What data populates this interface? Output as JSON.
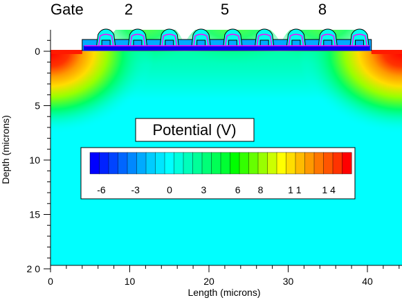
{
  "chart_data": {
    "type": "heatmap",
    "title": "Potential (V)",
    "gate_label": "Gate",
    "gate_numbers": [
      "2",
      "5",
      "8"
    ],
    "xlabel": "Length (microns)",
    "ylabel": "Depth (microns)",
    "xlim": [
      0,
      44
    ],
    "ylim": [
      -2,
      20
    ],
    "x_ticks": [
      {
        "value": 0,
        "label": "0"
      },
      {
        "value": 10,
        "label": "10"
      },
      {
        "value": 20,
        "label": "20"
      },
      {
        "value": 30,
        "label": "30"
      },
      {
        "value": 40,
        "label": "40"
      }
    ],
    "y_ticks": [
      {
        "value": 0,
        "label": "0"
      },
      {
        "value": 5,
        "label": "5"
      },
      {
        "value": 10,
        "label": "10"
      },
      {
        "value": 15,
        "label": "15"
      },
      {
        "value": 20,
        "label": "2 0"
      }
    ],
    "colorbar": {
      "range": [
        -7,
        16
      ],
      "tick_labels": [
        "-6",
        "-3",
        "0",
        "3",
        "6",
        "8",
        "1 1",
        "1 4"
      ],
      "colors": [
        "#0000ff",
        "#0022ff",
        "#0044ff",
        "#0066ff",
        "#0088ff",
        "#00aaff",
        "#00ccff",
        "#00e6ff",
        "#00ffff",
        "#00ffdd",
        "#00ffbb",
        "#00ff99",
        "#00ff77",
        "#00ff55",
        "#00ff33",
        "#00ff00",
        "#33ff00",
        "#66ff00",
        "#99ff00",
        "#ccff00",
        "#ffff00",
        "#ffdd00",
        "#ffbb00",
        "#ff9900",
        "#ff7700",
        "#ff5500",
        "#ff3300",
        "#ff0000"
      ]
    },
    "colors": {
      "substrate": "#00ffff",
      "oxide": "#00aaff",
      "gate_poly": "#00ffee",
      "electrode_outline": "#ff00ff",
      "contact_hot": "#ff1a00"
    },
    "gate_count": 9,
    "gate_x_start": 7,
    "gate_pitch": 4,
    "oxide_x_range": [
      4,
      40.5
    ]
  }
}
